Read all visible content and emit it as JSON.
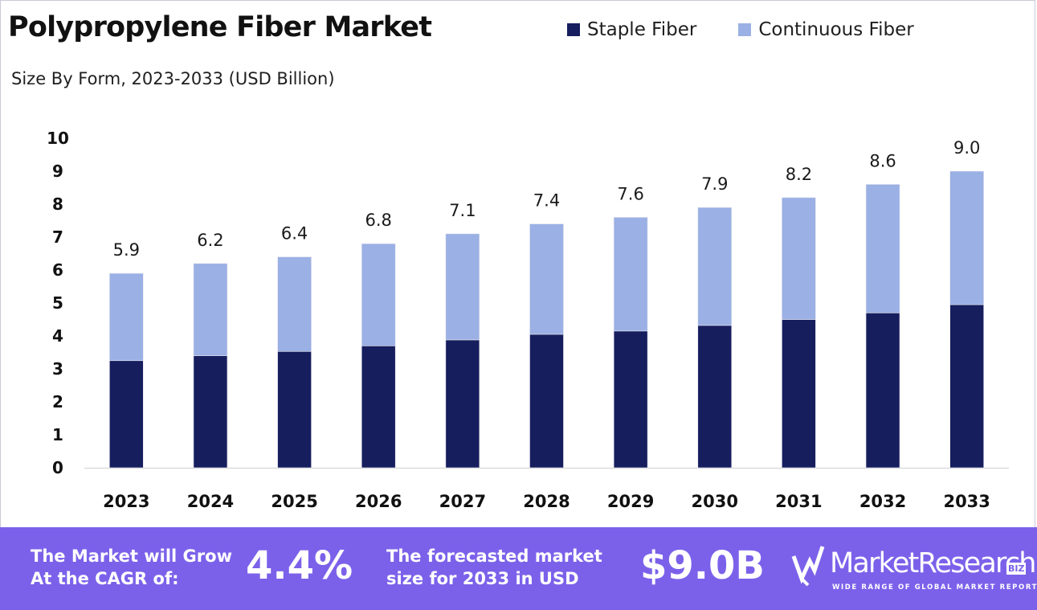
{
  "chart_data": {
    "type": "bar",
    "stacked": true,
    "title": "Polypropylene Fiber Market",
    "subtitle": "Size By Form, 2023-2033 (USD Billion)",
    "categories": [
      "2023",
      "2024",
      "2025",
      "2026",
      "2027",
      "2028",
      "2029",
      "2030",
      "2031",
      "2032",
      "2033"
    ],
    "series": [
      {
        "name": "Staple Fiber",
        "color": "#161e5e",
        "values": [
          3.25,
          3.4,
          3.53,
          3.7,
          3.88,
          4.05,
          4.15,
          4.32,
          4.5,
          4.7,
          4.95
        ]
      },
      {
        "name": "Continuous Fiber",
        "color": "#9bb0e4",
        "values": [
          2.65,
          2.8,
          2.87,
          3.1,
          3.22,
          3.35,
          3.45,
          3.58,
          3.7,
          3.9,
          4.05
        ]
      }
    ],
    "totals_labels": [
      "5.9",
      "6.2",
      "6.4",
      "6.8",
      "7.1",
      "7.4",
      "7.6",
      "7.9",
      "8.2",
      "8.6",
      "9.0"
    ],
    "y_ticks": [
      "0",
      "1",
      "2",
      "3",
      "4",
      "5",
      "6",
      "7",
      "8",
      "9",
      "10"
    ],
    "ylim": [
      0,
      10
    ],
    "grid": false,
    "legend_position": "top-right"
  },
  "banner": {
    "cagr_text_line1": "The Market will Grow",
    "cagr_text_line2": "At the CAGR of:",
    "cagr_value": "4.4%",
    "forecast_text_line1": "The forecasted market",
    "forecast_text_line2": "size for 2033 in USD",
    "forecast_value": "$9.0B",
    "colors": {
      "background": "#7b61ea",
      "text": "#ffffff"
    }
  },
  "logo": {
    "name": "MarketResearch",
    "badge": "BIZ",
    "tagline": "WIDE RANGE OF GLOBAL MARKET REPORTS"
  }
}
